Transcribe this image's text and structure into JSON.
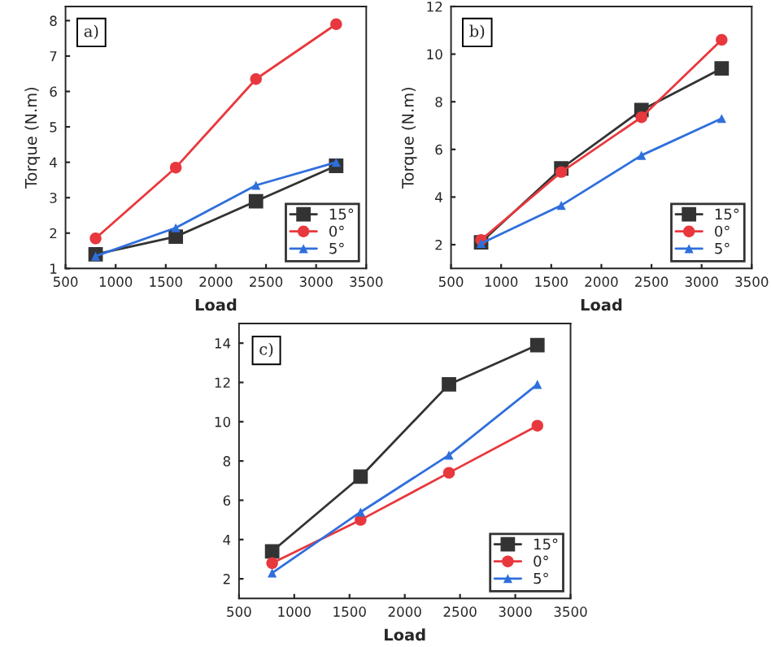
{
  "chart_data": [
    {
      "type": "line",
      "annotations": [
        "a)"
      ],
      "xlabel": "Load",
      "ylabel": "Torque (N.m)",
      "x": [
        800,
        1600,
        2400,
        3200
      ],
      "xlim": [
        500,
        3500
      ],
      "xticks": [
        500,
        1000,
        1500,
        2000,
        2500,
        3000,
        3500
      ],
      "ylim": [
        1,
        8.4
      ],
      "yticks": [
        1,
        2,
        3,
        4,
        5,
        6,
        7,
        8
      ],
      "legend": "bottom right",
      "grid": false,
      "series": [
        {
          "name": "15°",
          "color": "#333333",
          "marker": "square",
          "values": [
            1.4,
            1.9,
            2.9,
            3.9
          ]
        },
        {
          "name": "0°",
          "color": "#e8383d",
          "marker": "circle",
          "values": [
            1.85,
            3.85,
            6.35,
            7.9
          ]
        },
        {
          "name": "5°",
          "color": "#2f6fdc",
          "marker": "triangle",
          "values": [
            1.35,
            2.15,
            3.35,
            4.0
          ]
        }
      ]
    },
    {
      "type": "line",
      "annotations": [
        "b)"
      ],
      "xlabel": "Load",
      "ylabel": "Torque (N.m)",
      "x": [
        800,
        1600,
        2400,
        3200
      ],
      "xlim": [
        500,
        3500
      ],
      "xticks": [
        500,
        1000,
        1500,
        2000,
        2500,
        3000,
        3500
      ],
      "ylim": [
        1,
        12
      ],
      "yticks": [
        2,
        4,
        6,
        8,
        10,
        12
      ],
      "legend": "bottom right",
      "grid": false,
      "series": [
        {
          "name": "15°",
          "color": "#333333",
          "marker": "square",
          "values": [
            2.1,
            5.2,
            7.65,
            9.4
          ]
        },
        {
          "name": "0°",
          "color": "#e8383d",
          "marker": "circle",
          "values": [
            2.2,
            5.05,
            7.35,
            10.6
          ]
        },
        {
          "name": "5°",
          "color": "#2f6fdc",
          "marker": "triangle",
          "values": [
            2.05,
            3.65,
            5.75,
            7.3
          ]
        }
      ]
    },
    {
      "type": "line",
      "annotations": [
        "c)"
      ],
      "xlabel": "Load",
      "x": [
        800,
        1600,
        2400,
        3200
      ],
      "xlim": [
        500,
        3500
      ],
      "xticks": [
        500,
        1000,
        1500,
        2000,
        2500,
        3000,
        3500
      ],
      "ylim": [
        1,
        15
      ],
      "yticks": [
        2,
        4,
        6,
        8,
        10,
        12,
        14
      ],
      "legend": "bottom right",
      "grid": false,
      "series": [
        {
          "name": "15°",
          "color": "#333333",
          "marker": "square",
          "values": [
            3.4,
            7.2,
            11.9,
            13.9
          ]
        },
        {
          "name": "0°",
          "color": "#e8383d",
          "marker": "circle",
          "values": [
            2.8,
            5.0,
            7.4,
            9.8
          ]
        },
        {
          "name": "5°",
          "color": "#2f6fdc",
          "marker": "triangle",
          "values": [
            2.3,
            5.4,
            8.3,
            11.9
          ]
        }
      ]
    }
  ]
}
